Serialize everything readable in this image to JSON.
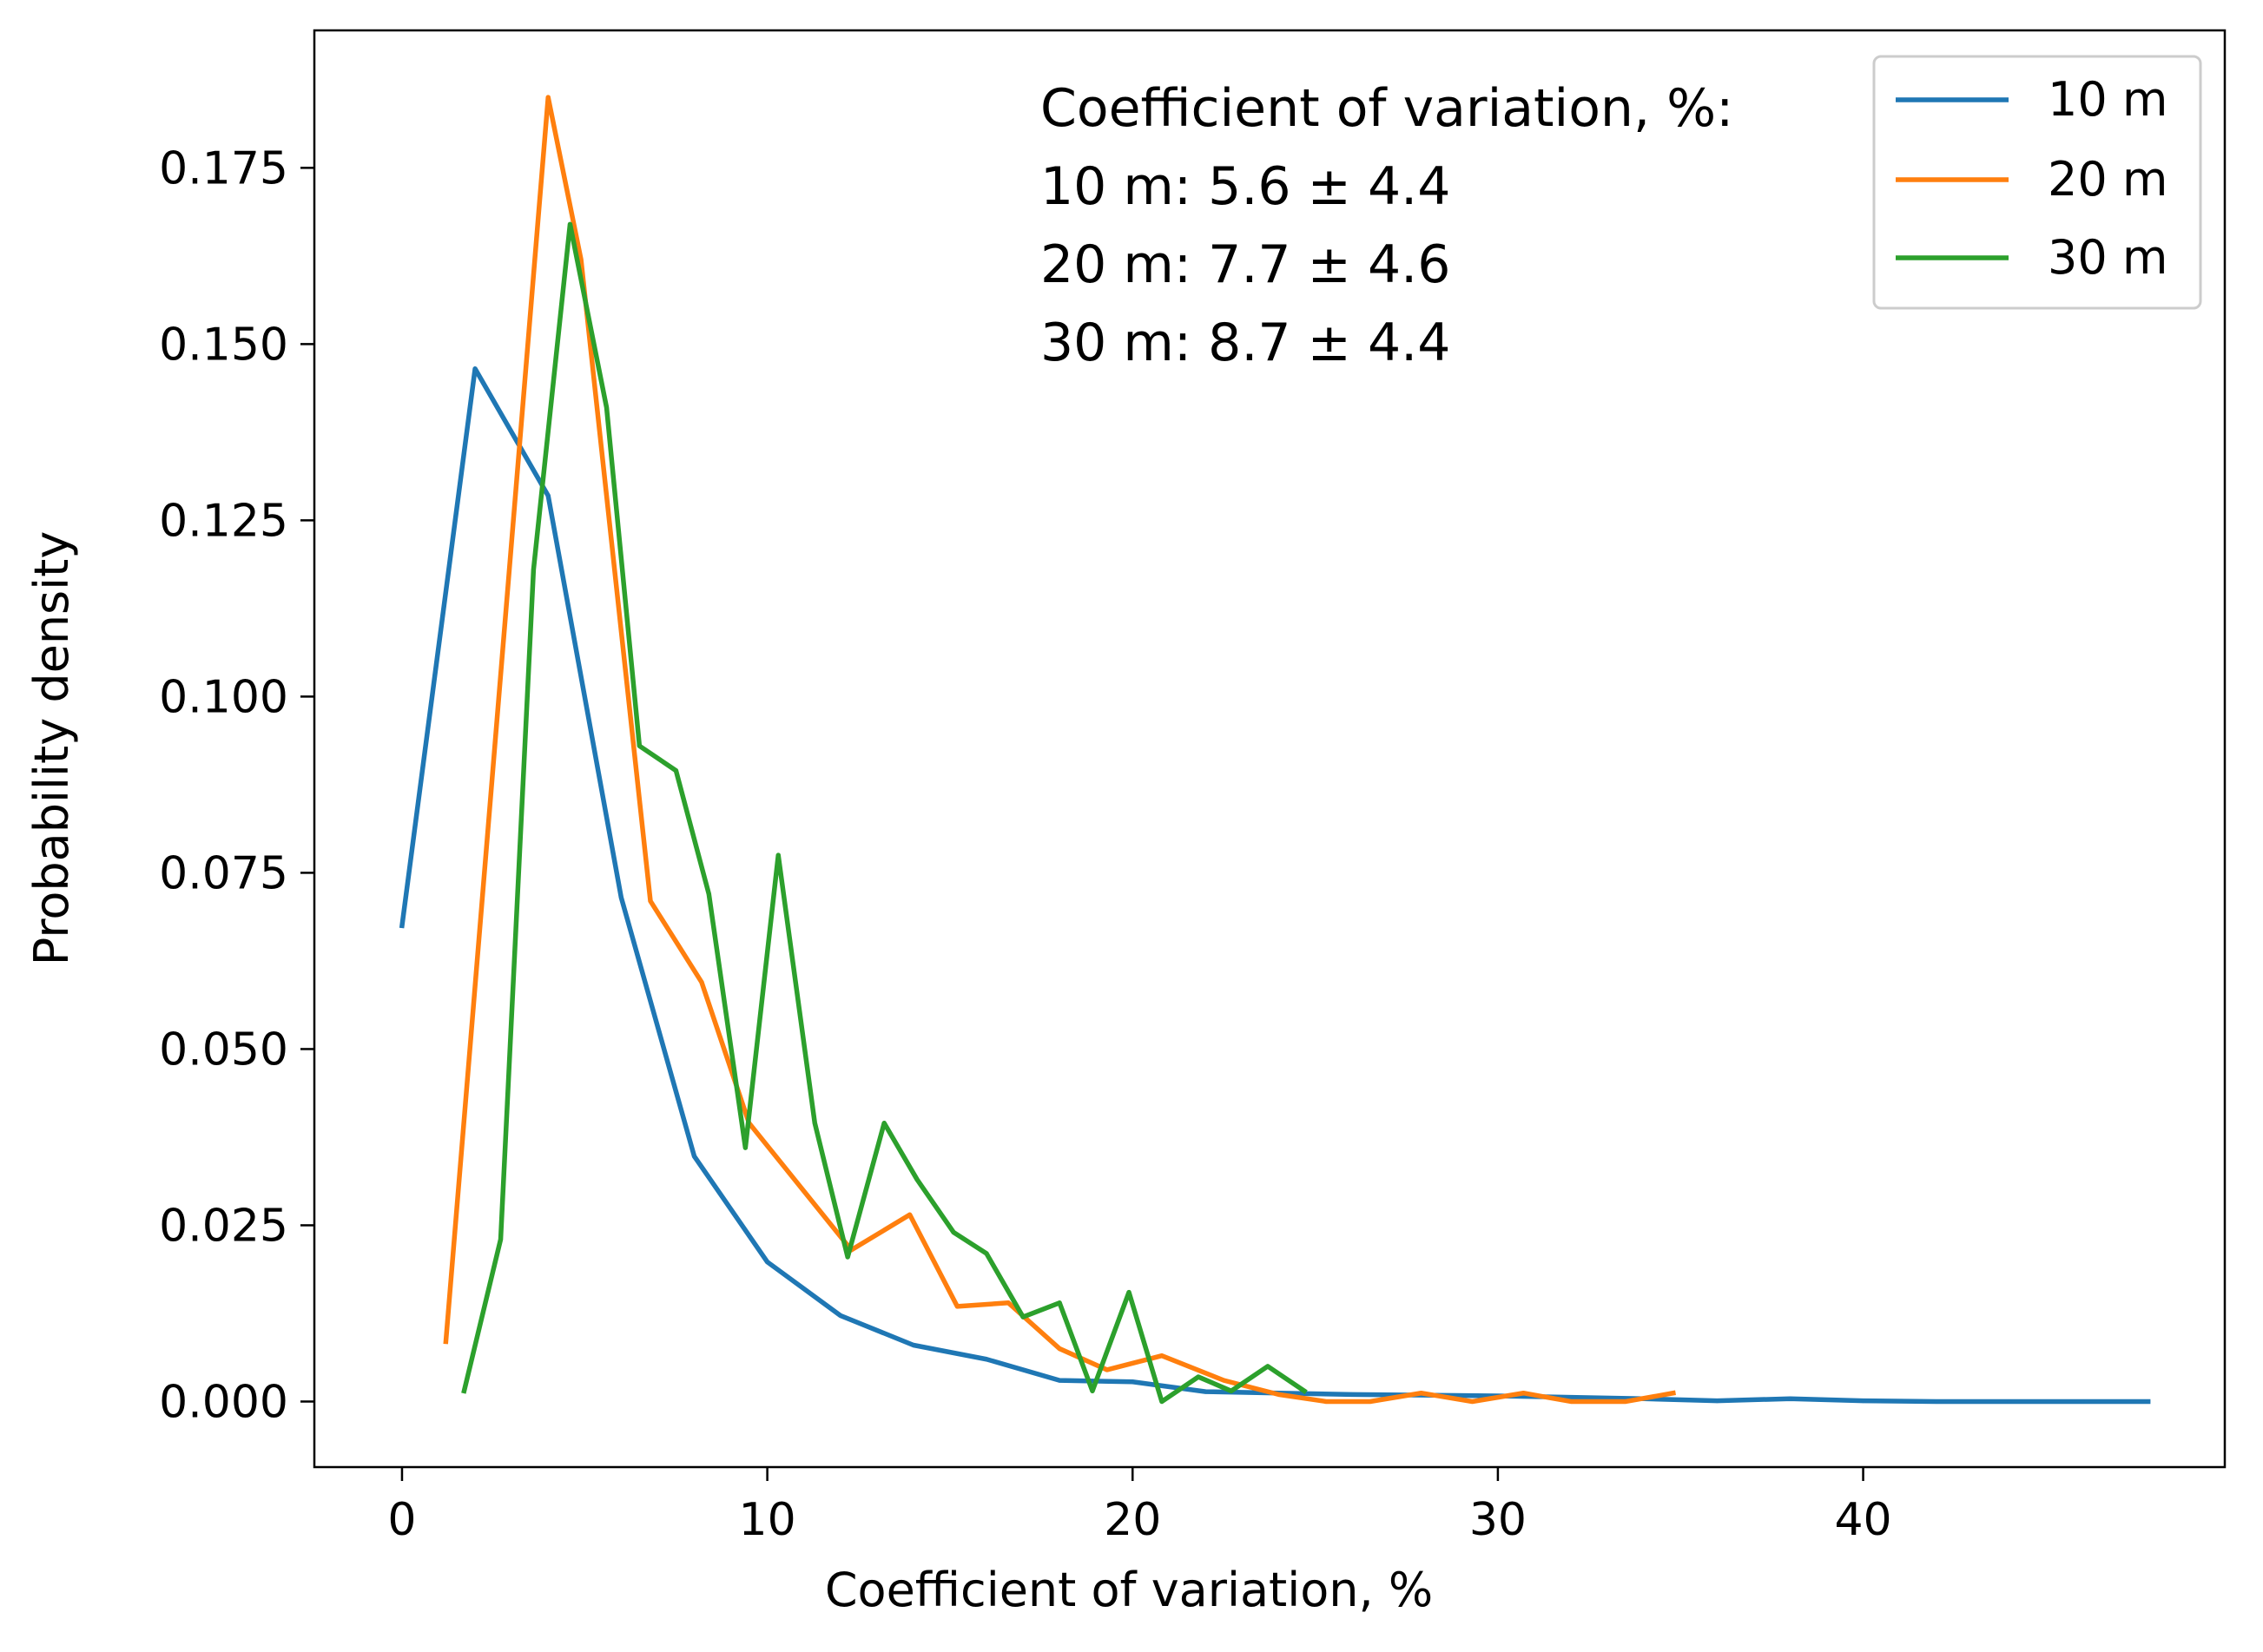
{
  "chart_data": {
    "type": "line",
    "title": "",
    "xlabel": "Coefficient of variation, %",
    "ylabel": "Probability density",
    "xlim": [
      -2.4,
      49.9
    ],
    "ylim": [
      -0.0093,
      0.1945
    ],
    "x_ticks": [
      0,
      10,
      20,
      30,
      40
    ],
    "x_tick_labels": [
      "0",
      "10",
      "20",
      "30",
      "40"
    ],
    "y_ticks": [
      0.0,
      0.025,
      0.05,
      0.075,
      0.1,
      0.125,
      0.15,
      0.175
    ],
    "y_tick_labels": [
      "0.000",
      "0.025",
      "0.050",
      "0.075",
      "0.100",
      "0.125",
      "0.150",
      "0.175"
    ],
    "grid": false,
    "legend_position": "top-right",
    "annotations": [
      "Coefficient of variation, %:",
      "10 m: 5.6 ± 4.4",
      "20 m: 7.7 ± 4.6",
      "30 m: 8.7 ± 4.4"
    ],
    "series": [
      {
        "name": "10 m",
        "color": "#1f77b4",
        "x": [
          0.0,
          2.0,
          4.0,
          6.0,
          8.0,
          10.0,
          12.0,
          14.0,
          16.0,
          18.0,
          20.0,
          22.0,
          24.0,
          26.0,
          28.0,
          30.0,
          32.0,
          34.0,
          36.0,
          38.0,
          40.0,
          42.0,
          44.0,
          46.0,
          47.8
        ],
        "y": [
          0.0675,
          0.1465,
          0.1285,
          0.0715,
          0.0348,
          0.0198,
          0.0122,
          0.008,
          0.006,
          0.003,
          0.0028,
          0.0014,
          0.0012,
          0.001,
          0.0009,
          0.0008,
          0.0006,
          0.0004,
          0.0001,
          0.0004,
          0.0001,
          0.0,
          0.0,
          0.0,
          0.0
        ]
      },
      {
        "name": "20 m",
        "color": "#ff7f0e",
        "x": [
          1.2,
          4.0,
          4.9,
          6.8,
          8.2,
          9.5,
          12.3,
          13.9,
          15.2,
          16.6,
          18.0,
          19.3,
          20.8,
          22.5,
          24.0,
          25.3,
          26.5,
          27.9,
          29.3,
          30.7,
          32.0,
          33.5,
          34.8
        ],
        "y": [
          0.0085,
          0.185,
          0.162,
          0.071,
          0.0595,
          0.0395,
          0.0215,
          0.0265,
          0.0135,
          0.014,
          0.0075,
          0.0045,
          0.0065,
          0.003,
          0.001,
          0.0,
          0.0,
          0.0012,
          0.0,
          0.0012,
          0.0,
          0.0,
          0.0012
        ]
      },
      {
        "name": "30 m",
        "color": "#2ca02c",
        "x": [
          1.7,
          2.7,
          3.6,
          4.6,
          5.6,
          6.5,
          7.5,
          8.4,
          9.4,
          10.3,
          11.3,
          12.2,
          13.2,
          14.1,
          15.1,
          16.0,
          17.0,
          18.0,
          18.9,
          19.9,
          20.8,
          21.8,
          22.7,
          23.7,
          24.7
        ],
        "y": [
          0.0015,
          0.023,
          0.118,
          0.167,
          0.141,
          0.093,
          0.0895,
          0.072,
          0.036,
          0.0775,
          0.0395,
          0.0205,
          0.0395,
          0.0315,
          0.024,
          0.021,
          0.012,
          0.014,
          0.0015,
          0.0155,
          0.0,
          0.0035,
          0.0015,
          0.005,
          0.0015
        ]
      }
    ]
  }
}
